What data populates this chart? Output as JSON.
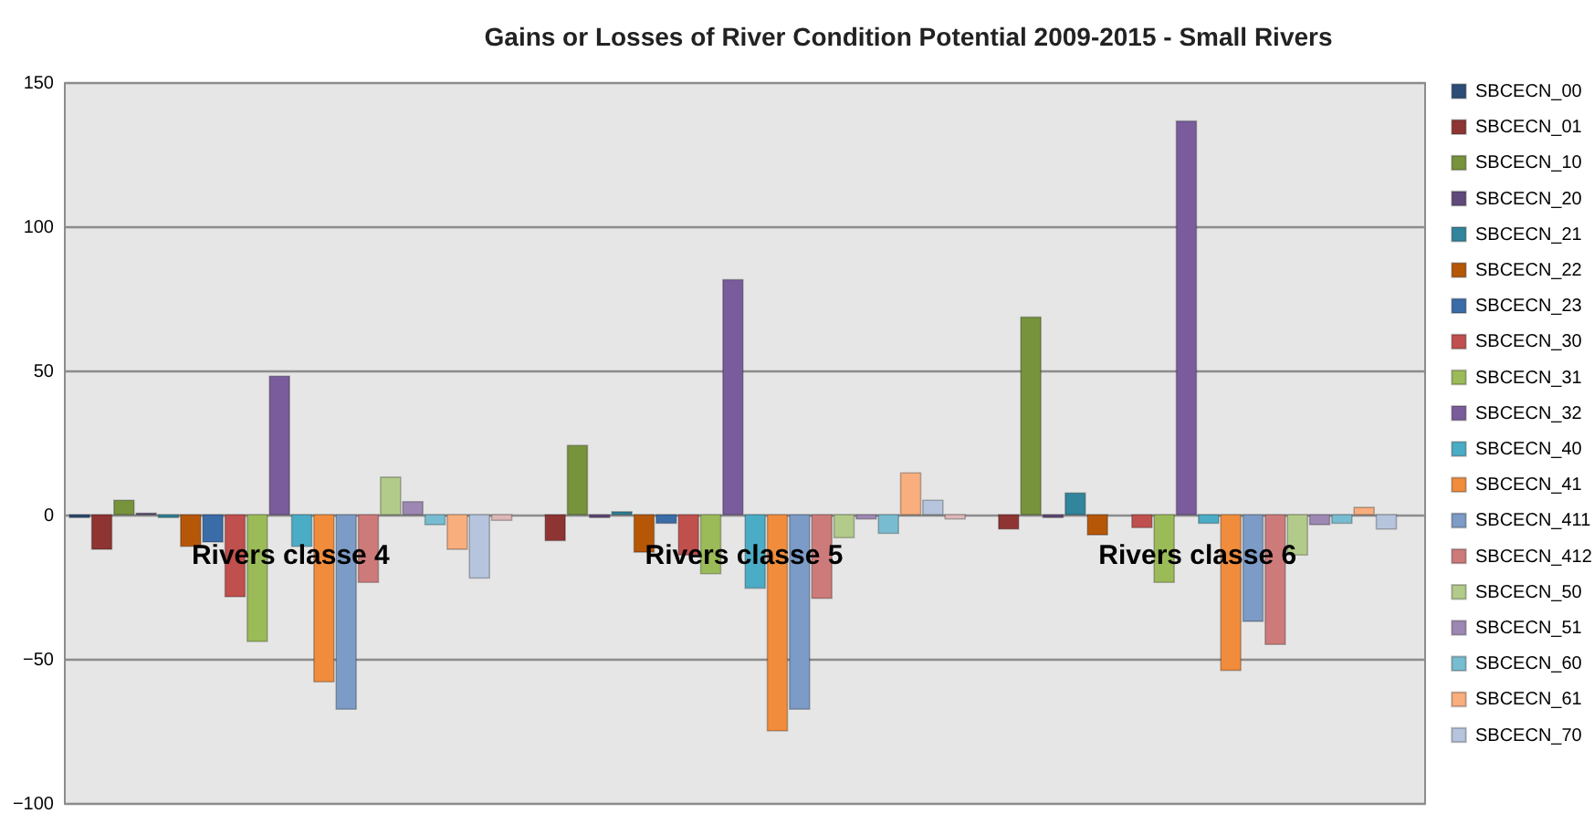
{
  "chart_data": {
    "type": "bar",
    "title": "Gains or Losses of River Condition Potential 2009-2015 - Small Rivers",
    "categories": [
      null,
      null,
      null
    ],
    "series": [
      {
        "name": "SBCECN_00",
        "color": "#2c4d75",
        "values": [
          -1,
          null,
          null
        ]
      },
      {
        "name": "SBCECN_01",
        "color": "#8e3432",
        "values": [
          -12,
          -9,
          -5
        ]
      },
      {
        "name": "SBCECN_10",
        "color": "#77933c",
        "values": [
          5,
          24,
          68.5
        ]
      },
      {
        "name": "SBCECN_20",
        "color": "#604a7b",
        "values": [
          0.5,
          -1,
          -1
        ]
      },
      {
        "name": "SBCECN_21",
        "color": "#31859c",
        "values": [
          -1,
          1,
          7.5
        ]
      },
      {
        "name": "SBCECN_22",
        "color": "#b65708",
        "values": [
          -11,
          -13,
          -7
        ]
      },
      {
        "name": "SBCECN_23",
        "color": "#3a6ca8",
        "values": [
          -9.5,
          -3,
          null
        ]
      },
      {
        "name": "SBCECN_30",
        "color": "#c0504d",
        "values": [
          -28.5,
          -14,
          -4.5
        ]
      },
      {
        "name": "SBCECN_31",
        "color": "#9bbb59",
        "values": [
          -44,
          -20.5,
          -23.5
        ]
      },
      {
        "name": "SBCECN_32",
        "color": "#7a5c9c",
        "values": [
          48,
          81.5,
          136.5
        ]
      },
      {
        "name": "SBCECN_40",
        "color": "#4bacc6",
        "values": [
          -11,
          -25.5,
          -3
        ]
      },
      {
        "name": "SBCECN_41",
        "color": "#f08c3c",
        "values": [
          -58,
          -75,
          -54
        ]
      },
      {
        "name": "SBCECN_411",
        "color": "#7c9bc7",
        "values": [
          -67.5,
          -67.5,
          -37
        ]
      },
      {
        "name": "SBCECN_412",
        "color": "#cd7b7a",
        "values": [
          -23.5,
          -29,
          -45
        ]
      },
      {
        "name": "SBCECN_50",
        "color": "#b3cb8a",
        "values": [
          13,
          -8,
          -14
        ]
      },
      {
        "name": "SBCECN_51",
        "color": "#9d88b3",
        "values": [
          4.5,
          -1.5,
          -3.5
        ]
      },
      {
        "name": "SBCECN_60",
        "color": "#78bcd1",
        "values": [
          -3.5,
          -6.5,
          -3
        ]
      },
      {
        "name": "SBCECN_61",
        "color": "#f9ae7e",
        "values": [
          -12,
          14.5,
          2.5
        ]
      },
      {
        "name": "SBCECN_70",
        "color": "#b6c4dd",
        "values": [
          -22,
          5,
          -5
        ]
      },
      {
        "color": "#ddb7b7",
        "values": [
          -2,
          -1.5,
          null
        ]
      }
    ],
    "annotations": [
      "Rivers classe 4",
      "Rivers classe 5",
      "Rivers classe 6"
    ],
    "ylim": [
      -100,
      150
    ],
    "yticks": [
      -100,
      -50,
      0,
      50,
      100,
      150
    ],
    "grid": "y",
    "legend": "right",
    "tick_labels": "y"
  }
}
